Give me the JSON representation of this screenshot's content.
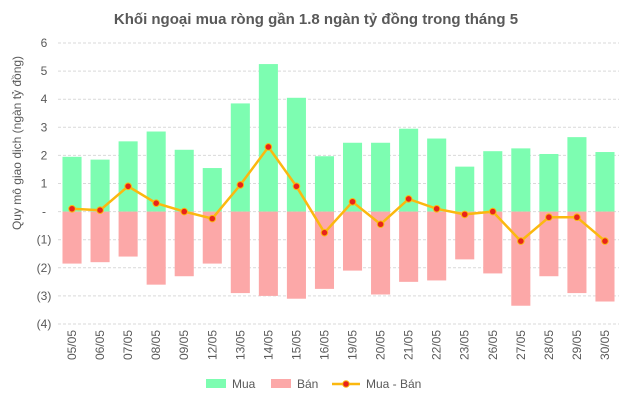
{
  "chart_data": {
    "type": "bar",
    "title": "Khối ngoại mua ròng gần 1.8 ngàn tỷ đồng trong tháng 5",
    "ylabel": "Quy mô giao dịch (ngàn tỷ đồng)",
    "xlabel": "",
    "ylim": [
      -4,
      6
    ],
    "yticks": [
      {
        "value": 6,
        "label": "6"
      },
      {
        "value": 5,
        "label": "5"
      },
      {
        "value": 4,
        "label": "4"
      },
      {
        "value": 3,
        "label": "3"
      },
      {
        "value": 2,
        "label": "2"
      },
      {
        "value": 1,
        "label": "1"
      },
      {
        "value": 0,
        "label": "-"
      },
      {
        "value": -1,
        "label": "(1)"
      },
      {
        "value": -2,
        "label": "(2)"
      },
      {
        "value": -3,
        "label": "(3)"
      },
      {
        "value": -4,
        "label": "(4)"
      }
    ],
    "grid": true,
    "legend_position": "bottom",
    "categories": [
      "05/05",
      "06/05",
      "07/05",
      "08/05",
      "09/05",
      "12/05",
      "13/05",
      "14/05",
      "15/05",
      "16/05",
      "19/05",
      "20/05",
      "21/05",
      "22/05",
      "23/05",
      "26/05",
      "27/05",
      "28/05",
      "29/05",
      "30/05"
    ],
    "series": [
      {
        "name": "Mua",
        "kind": "bar",
        "color": "#7dfdb1",
        "values": [
          1.95,
          1.85,
          2.5,
          2.85,
          2.2,
          1.55,
          3.85,
          5.25,
          4.05,
          1.97,
          2.45,
          2.45,
          2.95,
          2.6,
          1.6,
          2.15,
          2.25,
          2.05,
          2.65,
          2.12
        ]
      },
      {
        "name": "Bán",
        "kind": "bar",
        "color": "#fca8a8",
        "values": [
          -1.85,
          -1.8,
          -1.6,
          -2.6,
          -2.3,
          -1.85,
          -2.9,
          -3.0,
          -3.1,
          -2.75,
          -2.1,
          -2.95,
          -2.5,
          -2.45,
          -1.7,
          -2.2,
          -3.35,
          -2.3,
          -2.9,
          -3.2
        ]
      },
      {
        "name": "Mua - Bán",
        "kind": "line",
        "color": "#fbb80f",
        "marker_color": "#e8231a",
        "values": [
          0.1,
          0.05,
          0.9,
          0.3,
          0.0,
          -0.25,
          0.95,
          2.3,
          0.9,
          -0.75,
          0.35,
          -0.45,
          0.45,
          0.1,
          -0.1,
          0.0,
          -1.05,
          -0.2,
          -0.2,
          -1.05
        ]
      }
    ]
  },
  "colors": {
    "grid": "#d9d9d9",
    "axis_text": "#595959",
    "title": "#595959"
  }
}
